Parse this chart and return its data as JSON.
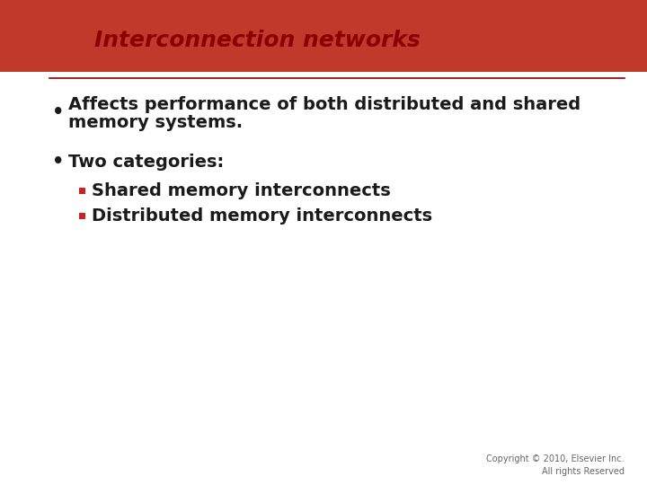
{
  "title": "Interconnection networks",
  "title_color": "#8B0000",
  "title_fontsize": 18,
  "background_color": "#ffffff",
  "header_bg_color": "#c0392b",
  "separator_color": "#8B0000",
  "bullet1_line1": "Affects performance of both distributed and shared",
  "bullet1_line2": "memory systems.",
  "bullet2_main": "Two categories:",
  "bullet2_sub1": "Shared memory interconnects",
  "bullet2_sub2": "Distributed memory interconnects",
  "body_text_color": "#1a1a1a",
  "body_fontsize": 14,
  "sub_bullet_color": "#cc2222",
  "copyright": "Copyright © 2010, Elsevier Inc.\nAll rights Reserved",
  "copyright_fontsize": 7,
  "copyright_color": "#666666"
}
